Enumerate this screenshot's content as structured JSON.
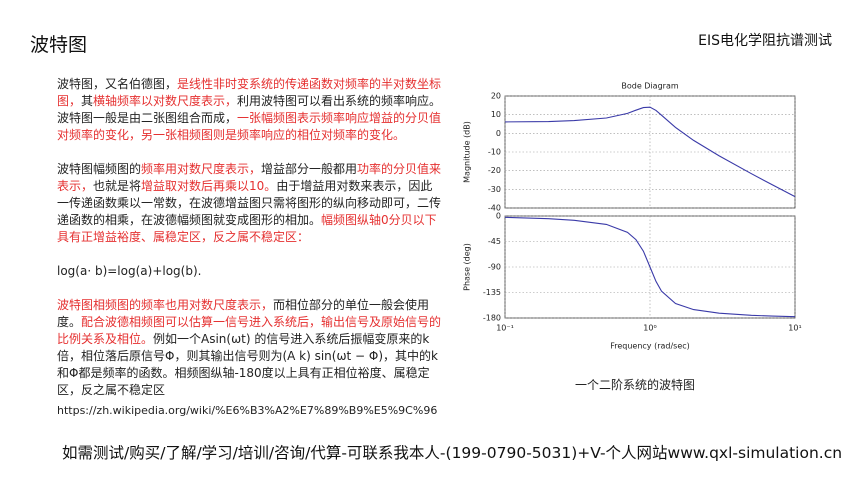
{
  "header": {
    "title": "波特图",
    "subtitle": "EIS电化学阻抗谱测试"
  },
  "body": [
    [
      {
        "text": "波特图，又名伯德图，"
      },
      {
        "text": "是线性非时变系统的传递函数对频率的半对数坐标图，",
        "color": "#e53030"
      },
      {
        "text": "其"
      },
      {
        "text": "横轴频率以对数尺度表示，",
        "color": "#e53030"
      },
      {
        "text": "利用波特图可以看出系统的频率响应。波特图一般是由二张图组合而成，"
      },
      {
        "text": "一张幅频图表示频率响应增益的分贝值对频率的变化，另一张相频图则是频率响应的相位对频率的变化。",
        "color": "#e53030"
      }
    ],
    [
      {
        "text": "波特图幅频图的"
      },
      {
        "text": "频率用对数尺度表示，",
        "color": "#e53030"
      },
      {
        "text": "增益部分一般都用"
      },
      {
        "text": "功率的分贝值来表示，",
        "color": "#e53030"
      },
      {
        "text": "也就是将"
      },
      {
        "text": "增益取对数后再乘以10。",
        "color": "#e53030"
      },
      {
        "text": "由于增益用对数来表示，因此一传递函数乘以一常数，在波德增益图只需将图形的纵向移动即可，二传递函数的相乘，在波德幅频图就变成图形的相加。"
      },
      {
        "text": "幅频图纵轴0分贝以下具有正增益裕度、属稳定区，反之属不稳定区：",
        "color": "#e53030"
      }
    ],
    [
      {
        "text": "log(a· b)=log(a)+log(b)."
      }
    ],
    [
      {
        "text": "波特图相频图的频率也用对数尺度表示，",
        "color": "#e53030"
      },
      {
        "text": "而相位部分的单位一般会使用度。"
      },
      {
        "text": "配合波德相频图可以估算一信号进入系统后，输出信号及原始信号的比例关系及相位。",
        "color": "#e53030"
      },
      {
        "text": "例如一个Asin(ωt) 的信号进入系统后振幅变原来的k倍，相位落后原信号Φ，则其输出信号则为(A k) sin(ωt − Φ)，其中的k和Φ都是频率的函数。相频图纵轴-180度以上具有正相位裕度、属稳定区，反之属不稳定区"
      }
    ]
  ],
  "caption": "一个二阶系统的波特图",
  "url": "https://zh.wikipedia.org/wiki/%E6%B3%A2%E7%89%B9%E5%9C%96",
  "footer": "如需测试/购买/了解/学习/培训/咨询/代算-可联系我本人-(199-0790-5031)+V-个人网站www.qxl-simulation.cn",
  "chart_data": [
    {
      "type": "line",
      "title": "Bode Diagram",
      "ylabel": "Magnitude (dB)",
      "xscale": "log",
      "grid": true,
      "color": "#3a3aa8",
      "x": [
        0.1,
        0.2,
        0.3,
        0.5,
        0.7,
        0.8,
        0.9,
        1,
        1.1,
        1.2,
        1.5,
        2,
        3,
        5,
        7,
        10
      ],
      "values": [
        6.1,
        6.3,
        6.8,
        8.2,
        10.7,
        12.4,
        13.8,
        14.0,
        12.3,
        9.7,
        3.2,
        -3.8,
        -12.1,
        -21.6,
        -27.6,
        -33.9
      ],
      "xlim": [
        0.1,
        10
      ],
      "ylim": [
        -40,
        20
      ],
      "yticks": [
        -40,
        -30,
        -20,
        -10,
        0,
        10,
        20
      ]
    },
    {
      "type": "line",
      "ylabel": "Phase (deg)",
      "xlabel": "Frequency  (rad/sec)",
      "xscale": "log",
      "grid": true,
      "color": "#3a3aa8",
      "x": [
        0.1,
        0.2,
        0.3,
        0.5,
        0.7,
        0.8,
        0.9,
        1,
        1.1,
        1.2,
        1.5,
        2,
        3,
        5,
        7,
        10
      ],
      "values": [
        -2.3,
        -4.8,
        -7.5,
        -14.9,
        -28.8,
        -41.6,
        -62.2,
        -90,
        -115.5,
        -132.5,
        -154.4,
        -165.1,
        -171.5,
        -175.2,
        -176.7,
        -177.7
      ],
      "xlim": [
        0.1,
        10
      ],
      "xticks": [
        {
          "value": 0.1,
          "label": "10⁻¹"
        },
        {
          "value": 1,
          "label": "10⁰"
        },
        {
          "value": 10,
          "label": "10¹"
        }
      ],
      "ylim": [
        -180,
        0
      ],
      "yticks": [
        -180,
        -135,
        -90,
        -45,
        0
      ]
    }
  ]
}
